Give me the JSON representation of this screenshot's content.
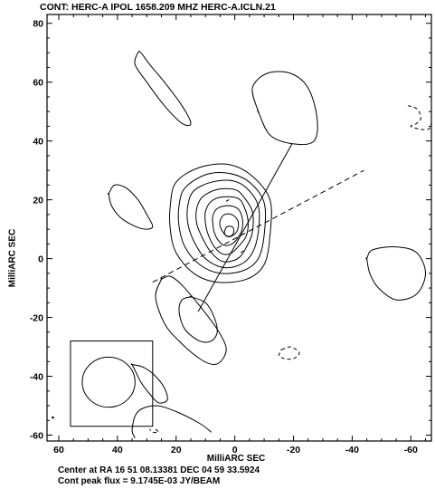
{
  "chart_data": {
    "type": "contour",
    "title": "CONT: HERC-A  IPOL  1658.209 MHZ  HERC-A.ICLN.21",
    "xlabel": "MilliARC SEC",
    "ylabel": "MilliARC SEC",
    "xlim": [
      64,
      -67
    ],
    "ylim": [
      -62,
      83
    ],
    "xticks": [
      60,
      40,
      20,
      0,
      -20,
      -40,
      -60
    ],
    "xtick_labels": [
      "60",
      "40",
      "20",
      "0",
      "-20",
      "-40",
      "-60"
    ],
    "yticks": [
      80,
      60,
      40,
      20,
      0,
      -20,
      -40,
      -60
    ],
    "ytick_labels": [
      "80",
      "60",
      "40",
      "20",
      "0",
      "-20",
      "-40",
      "-60"
    ],
    "center_contours": [
      [
        [
          22,
          18
        ],
        [
          20,
          26
        ],
        [
          12,
          31
        ],
        [
          2,
          32
        ],
        [
          -6,
          28
        ],
        [
          -12,
          20
        ],
        [
          -12,
          8
        ],
        [
          -10,
          -2
        ],
        [
          -4,
          -7
        ],
        [
          6,
          -8
        ],
        [
          14,
          -5
        ],
        [
          20,
          2
        ],
        [
          22,
          10
        ]
      ],
      [
        [
          19,
          18
        ],
        [
          17,
          24
        ],
        [
          10,
          28.5
        ],
        [
          2,
          29
        ],
        [
          -5,
          26
        ],
        [
          -10,
          19
        ],
        [
          -10,
          8
        ],
        [
          -8,
          0
        ],
        [
          -3,
          -4
        ],
        [
          5,
          -5
        ],
        [
          12,
          -2
        ],
        [
          17,
          4
        ],
        [
          19,
          11
        ]
      ],
      [
        [
          16,
          18
        ],
        [
          14,
          23
        ],
        [
          8,
          26
        ],
        [
          1,
          26.5
        ],
        [
          -4,
          24
        ],
        [
          -8,
          18
        ],
        [
          -8,
          9
        ],
        [
          -6,
          2
        ],
        [
          -2,
          -2
        ],
        [
          4,
          -3
        ],
        [
          10,
          0
        ],
        [
          14,
          6
        ],
        [
          16,
          12
        ]
      ],
      [
        [
          13,
          17
        ],
        [
          11,
          21
        ],
        [
          6,
          23.5
        ],
        [
          0,
          23.5
        ],
        [
          -3,
          21
        ],
        [
          -6,
          16
        ],
        [
          -6,
          9
        ],
        [
          -4,
          4
        ],
        [
          -1,
          0
        ],
        [
          4,
          -1
        ],
        [
          8,
          2
        ],
        [
          11,
          7
        ],
        [
          13,
          12
        ]
      ],
      [
        [
          10,
          16
        ],
        [
          8,
          19.5
        ],
        [
          4,
          21
        ],
        [
          -1,
          20.5
        ],
        [
          -3,
          18
        ],
        [
          -4.5,
          13
        ],
        [
          -4,
          8
        ],
        [
          -2,
          5
        ],
        [
          1,
          2
        ],
        [
          4,
          1.5
        ],
        [
          7,
          4
        ],
        [
          9,
          8
        ],
        [
          10,
          12
        ]
      ],
      [
        [
          7.5,
          14.5
        ],
        [
          6,
          17
        ],
        [
          2.5,
          18
        ],
        [
          -1,
          17
        ],
        [
          -2.5,
          14
        ],
        [
          -2.5,
          10
        ],
        [
          -1,
          7
        ],
        [
          1,
          5
        ],
        [
          3.5,
          4.5
        ],
        [
          5.5,
          6
        ],
        [
          7,
          9
        ],
        [
          7.5,
          12
        ]
      ],
      [
        [
          5,
          13
        ],
        [
          3.5,
          15
        ],
        [
          1,
          15
        ],
        [
          -1,
          13
        ],
        [
          -1,
          10
        ],
        [
          0.5,
          8
        ],
        [
          2.5,
          7.5
        ],
        [
          4,
          9
        ],
        [
          5,
          11
        ]
      ],
      [
        [
          2,
          11
        ],
        [
          0.5,
          10.5
        ],
        [
          0.5,
          8.5
        ],
        [
          2,
          7.5
        ],
        [
          3.5,
          8.5
        ],
        [
          3,
          10.5
        ]
      ]
    ],
    "other_contours": [
      [
        [
          33,
          70
        ],
        [
          34,
          66
        ],
        [
          30,
          60
        ],
        [
          24,
          52
        ],
        [
          18,
          46
        ],
        [
          15,
          46
        ],
        [
          18,
          52
        ],
        [
          24,
          60
        ],
        [
          29,
          66
        ],
        [
          32,
          70
        ]
      ],
      [
        [
          -8,
          50
        ],
        [
          -6,
          58
        ],
        [
          -11,
          63
        ],
        [
          -19,
          63
        ],
        [
          -25,
          58
        ],
        [
          -28,
          48
        ],
        [
          -27,
          40
        ],
        [
          -20,
          39
        ],
        [
          -12,
          42
        ],
        [
          -8,
          50
        ]
      ],
      [
        [
          43,
          22
        ],
        [
          41,
          25
        ],
        [
          37,
          24
        ],
        [
          33,
          20
        ],
        [
          30,
          15
        ],
        [
          28,
          11
        ],
        [
          30,
          10
        ],
        [
          34,
          11
        ],
        [
          39,
          14
        ],
        [
          42,
          18
        ],
        [
          43,
          22
        ]
      ],
      [
        [
          -45,
          0
        ],
        [
          -47,
          3
        ],
        [
          -55,
          4
        ],
        [
          -62,
          2
        ],
        [
          -65,
          -5
        ],
        [
          -62,
          -12
        ],
        [
          -55,
          -14
        ],
        [
          -49,
          -10
        ],
        [
          -46,
          -5
        ],
        [
          -45,
          0
        ]
      ],
      [
        [
          25,
          -7
        ],
        [
          27,
          -13
        ],
        [
          24,
          -22
        ],
        [
          19,
          -28
        ],
        [
          12,
          -34
        ],
        [
          7,
          -36
        ],
        [
          4,
          -34
        ],
        [
          3,
          -30
        ],
        [
          6,
          -24
        ],
        [
          12,
          -16
        ],
        [
          18,
          -9
        ],
        [
          22,
          -6
        ],
        [
          25,
          -7
        ]
      ],
      [
        [
          15,
          -13
        ],
        [
          18,
          -14
        ],
        [
          19,
          -18
        ],
        [
          17,
          -24
        ],
        [
          12,
          -28
        ],
        [
          8,
          -28
        ],
        [
          6,
          -25
        ],
        [
          7,
          -20
        ],
        [
          10,
          -15
        ],
        [
          15,
          -13
        ]
      ],
      [
        [
          35,
          -36
        ],
        [
          31,
          -37
        ],
        [
          27,
          -40
        ],
        [
          24,
          -44
        ],
        [
          23,
          -48
        ],
        [
          26,
          -49
        ],
        [
          29,
          -46
        ],
        [
          32,
          -42
        ],
        [
          34,
          -38
        ],
        [
          35,
          -36
        ]
      ],
      [
        [
          8,
          -59
        ],
        [
          12,
          -56
        ],
        [
          20,
          -52
        ],
        [
          27,
          -50
        ],
        [
          33,
          -52
        ],
        [
          35,
          -58
        ],
        [
          34,
          -61
        ]
      ]
    ],
    "dashed_contours": [
      [
        [
          -59,
          52
        ],
        [
          -62,
          51
        ],
        [
          -63.5,
          48
        ],
        [
          -62,
          46
        ],
        [
          -60,
          45
        ],
        [
          -63,
          44
        ],
        [
          -66,
          44
        ],
        [
          -67,
          46
        ]
      ],
      [
        [
          -16,
          -31
        ],
        [
          -19,
          -30
        ],
        [
          -22,
          -32
        ],
        [
          -20,
          -34
        ],
        [
          -17,
          -34
        ],
        [
          -15,
          -33
        ],
        [
          -16,
          -31
        ]
      ],
      [
        [
          27,
          -58
        ],
        [
          26,
          -59
        ],
        [
          28,
          -59
        ],
        [
          29,
          -58
        ]
      ],
      [
        [
          3,
          19.5
        ],
        [
          1,
          20.5
        ]
      ],
      [
        [
          -2,
          2
        ],
        [
          -3.5,
          3
        ]
      ]
    ],
    "solid_line": [
      [
        12.5,
        -18
      ],
      [
        -19.5,
        39
      ]
    ],
    "dashed_line": [
      [
        28,
        -8
      ],
      [
        -44,
        30
      ]
    ],
    "beam_box": [
      [
        56,
        -28
      ],
      [
        28,
        -57
      ]
    ],
    "beam": {
      "center": [
        43,
        -42
      ],
      "rx": 9,
      "ry": 8.5
    }
  },
  "footer": {
    "line1": "Center at RA 16 51 08.13381  DEC 04 59 33.5924",
    "line2": "Cont peak flux =  9.1745E-03 JY/BEAM"
  }
}
